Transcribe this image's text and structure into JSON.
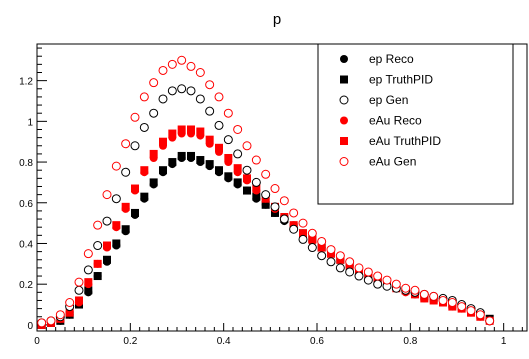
{
  "colors": {
    "ep": "#000000",
    "eau": "#ff0000"
  },
  "chart_data": {
    "type": "scatter",
    "title": "p",
    "xlabel": "",
    "ylabel": "",
    "xlim": [
      0,
      1.05
    ],
    "ylim": [
      -0.03,
      1.38
    ],
    "xticks": [
      0,
      0.2,
      0.4,
      0.6,
      0.8,
      1
    ],
    "xtick_labels": [
      "0",
      "0.2",
      "0.4",
      "0.6",
      "0.8",
      "1"
    ],
    "yticks": [
      0,
      0.2,
      0.4,
      0.6,
      0.8,
      1,
      1.2
    ],
    "ytick_labels": [
      "0",
      "0.2",
      "0.4",
      "0.6",
      "0.8",
      "1",
      "1.2"
    ],
    "legend_position": "top-right",
    "x": [
      0.01,
      0.03,
      0.05,
      0.07,
      0.09,
      0.11,
      0.13,
      0.15,
      0.17,
      0.19,
      0.21,
      0.23,
      0.25,
      0.27,
      0.29,
      0.31,
      0.33,
      0.35,
      0.37,
      0.39,
      0.41,
      0.43,
      0.45,
      0.47,
      0.49,
      0.51,
      0.53,
      0.55,
      0.57,
      0.59,
      0.61,
      0.63,
      0.65,
      0.67,
      0.69,
      0.71,
      0.73,
      0.75,
      0.77,
      0.79,
      0.81,
      0.83,
      0.85,
      0.87,
      0.89,
      0.91,
      0.93,
      0.95,
      0.97
    ],
    "series": [
      {
        "name": "ep Reco",
        "marker": "filled-circle",
        "color": "#000000",
        "values": [
          0.0,
          0.01,
          0.02,
          0.05,
          0.1,
          0.16,
          0.24,
          0.31,
          0.39,
          0.46,
          0.54,
          0.62,
          0.69,
          0.75,
          0.79,
          0.82,
          0.82,
          0.8,
          0.78,
          0.75,
          0.72,
          0.69,
          0.66,
          0.62,
          0.59,
          0.55,
          0.51,
          0.48,
          0.44,
          0.41,
          0.38,
          0.35,
          0.32,
          0.29,
          0.27,
          0.25,
          0.22,
          0.21,
          0.19,
          0.17,
          0.15,
          0.14,
          0.13,
          0.12,
          0.1,
          0.09,
          0.07,
          0.05,
          0.02
        ]
      },
      {
        "name": "ep TruthPID",
        "marker": "filled-square",
        "color": "#000000",
        "values": [
          0.0,
          0.01,
          0.02,
          0.05,
          0.1,
          0.17,
          0.24,
          0.32,
          0.4,
          0.47,
          0.55,
          0.63,
          0.7,
          0.76,
          0.8,
          0.83,
          0.83,
          0.81,
          0.79,
          0.76,
          0.73,
          0.7,
          0.66,
          0.63,
          0.59,
          0.55,
          0.52,
          0.48,
          0.45,
          0.42,
          0.38,
          0.35,
          0.32,
          0.3,
          0.27,
          0.25,
          0.23,
          0.21,
          0.19,
          0.17,
          0.16,
          0.14,
          0.13,
          0.12,
          0.1,
          0.09,
          0.07,
          0.05,
          0.03
        ]
      },
      {
        "name": "ep Gen",
        "marker": "open-circle",
        "color": "#000000",
        "values": [
          0.01,
          0.02,
          0.04,
          0.09,
          0.17,
          0.27,
          0.39,
          0.51,
          0.62,
          0.75,
          0.88,
          0.97,
          1.04,
          1.11,
          1.15,
          1.16,
          1.15,
          1.11,
          1.05,
          0.98,
          0.91,
          0.84,
          0.76,
          0.7,
          0.64,
          0.58,
          0.52,
          0.47,
          0.42,
          0.38,
          0.34,
          0.31,
          0.28,
          0.26,
          0.24,
          0.22,
          0.2,
          0.19,
          0.18,
          0.17,
          0.16,
          0.15,
          0.14,
          0.13,
          0.12,
          0.1,
          0.08,
          0.06,
          0.02
        ]
      },
      {
        "name": "eAu Reco",
        "marker": "filled-circle",
        "color": "#ff0000",
        "values": [
          0.0,
          0.01,
          0.03,
          0.06,
          0.11,
          0.2,
          0.3,
          0.38,
          0.48,
          0.57,
          0.66,
          0.75,
          0.82,
          0.88,
          0.92,
          0.94,
          0.94,
          0.93,
          0.89,
          0.85,
          0.8,
          0.75,
          0.71,
          0.66,
          0.62,
          0.57,
          0.53,
          0.49,
          0.45,
          0.41,
          0.38,
          0.35,
          0.32,
          0.29,
          0.27,
          0.24,
          0.22,
          0.2,
          0.18,
          0.16,
          0.15,
          0.13,
          0.12,
          0.11,
          0.09,
          0.08,
          0.06,
          0.04,
          0.02
        ]
      },
      {
        "name": "eAu TruthPID",
        "marker": "filled-square",
        "color": "#ff0000",
        "values": [
          0.0,
          0.01,
          0.03,
          0.06,
          0.12,
          0.21,
          0.3,
          0.39,
          0.49,
          0.58,
          0.67,
          0.76,
          0.84,
          0.9,
          0.94,
          0.96,
          0.96,
          0.95,
          0.91,
          0.87,
          0.82,
          0.77,
          0.72,
          0.67,
          0.62,
          0.58,
          0.53,
          0.49,
          0.45,
          0.42,
          0.38,
          0.35,
          0.32,
          0.29,
          0.27,
          0.25,
          0.22,
          0.2,
          0.18,
          0.17,
          0.15,
          0.13,
          0.12,
          0.11,
          0.09,
          0.08,
          0.06,
          0.04,
          0.02
        ]
      },
      {
        "name": "eAu Gen",
        "marker": "open-circle",
        "color": "#ff0000",
        "values": [
          0.01,
          0.02,
          0.05,
          0.11,
          0.21,
          0.35,
          0.49,
          0.64,
          0.78,
          0.89,
          1.02,
          1.12,
          1.19,
          1.25,
          1.28,
          1.3,
          1.27,
          1.24,
          1.18,
          1.12,
          1.04,
          0.96,
          0.88,
          0.81,
          0.74,
          0.67,
          0.61,
          0.55,
          0.5,
          0.45,
          0.41,
          0.37,
          0.34,
          0.31,
          0.28,
          0.26,
          0.24,
          0.22,
          0.2,
          0.18,
          0.17,
          0.15,
          0.14,
          0.12,
          0.11,
          0.09,
          0.07,
          0.05,
          0.02
        ]
      }
    ]
  }
}
